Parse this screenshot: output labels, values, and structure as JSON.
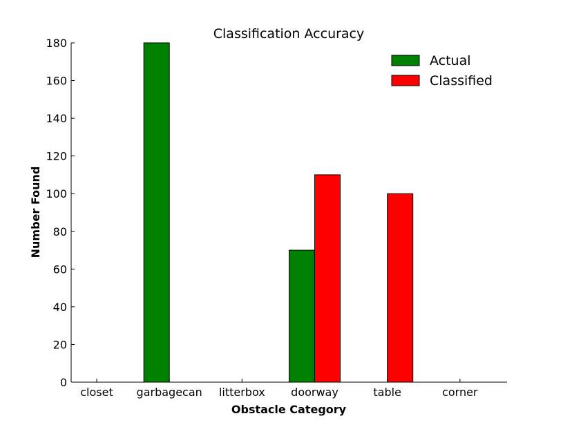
{
  "chart_data": {
    "type": "bar",
    "title": "Classification Accuracy",
    "xlabel": "Obstacle Category",
    "ylabel": "Number Found",
    "categories": [
      "closet",
      "garbagecan",
      "litterbox",
      "doorway",
      "table",
      "corner"
    ],
    "series": [
      {
        "name": "Actual",
        "color": "#008000",
        "values": [
          0,
          180,
          0,
          70,
          0,
          0
        ]
      },
      {
        "name": "Classified",
        "color": "#ff0000",
        "values": [
          0,
          0,
          0,
          110,
          100,
          0
        ]
      }
    ],
    "ylim": [
      0,
      180
    ],
    "yticks": [
      0,
      20,
      40,
      60,
      80,
      100,
      120,
      140,
      160,
      180
    ],
    "grid": false,
    "legend": "top-right"
  }
}
